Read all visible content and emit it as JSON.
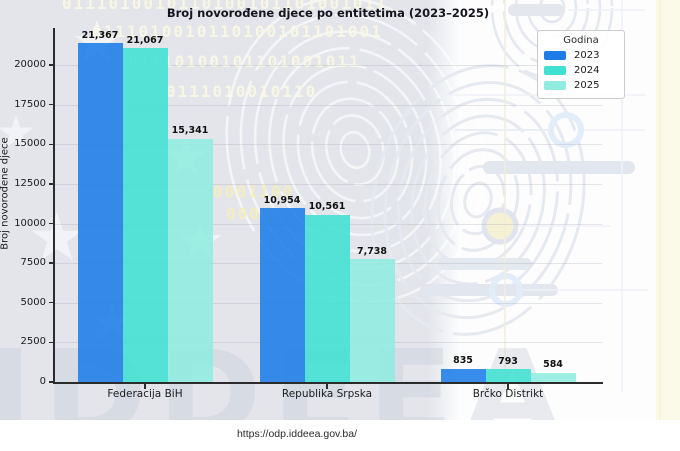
{
  "title": "Broj novorođene djece po entitetima (2023–2025)",
  "footer": {
    "url": "https://odp.iddeea.gov.ba/"
  },
  "watermark": {
    "brand": "IDDEEA",
    "binary_rows": [
      "0111010010110100101101001011",
      "0111010010110100101101001",
      "01110100101101001011",
      "0111010010110",
      "0001100",
      "00011"
    ]
  },
  "chart_data": {
    "type": "bar",
    "title": "Broj novorođene djece po entitetima (2023–2025)",
    "xlabel": "",
    "ylabel": "Broj novorođene djece",
    "legend_title": "Godina",
    "legend_position": "upper right",
    "grid": true,
    "categories": [
      "Federacija BiH",
      "Republika Srpska",
      "Brčko Distrikt"
    ],
    "series": [
      {
        "name": "2023",
        "color": "#1d7ce8",
        "values": [
          21367,
          10954,
          835
        ],
        "labels": [
          "21,367",
          "10,954",
          "835"
        ]
      },
      {
        "name": "2024",
        "color": "#40e0d3",
        "values": [
          21067,
          10561,
          793
        ],
        "labels": [
          "21,067",
          "10,561",
          "793"
        ]
      },
      {
        "name": "2025",
        "color": "#90ecdf",
        "values": [
          15341,
          7738,
          584
        ],
        "labels": [
          "15,341",
          "7,738",
          "584"
        ]
      }
    ],
    "y_ticks": [
      0,
      2500,
      5000,
      7500,
      10000,
      12500,
      15000,
      17500,
      20000
    ],
    "ylim": [
      0,
      22300
    ]
  }
}
